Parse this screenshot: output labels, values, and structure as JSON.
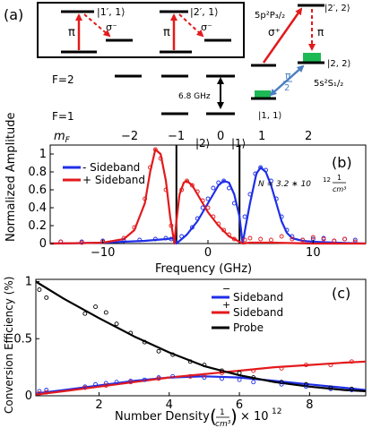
{
  "panel_a": {
    "label": "(a)",
    "box_left": {
      "upper_label": "|1′, 1⟩",
      "sigma_label": "σ⁻",
      "pi_label": "π"
    },
    "box_right": {
      "upper_label": "|2′, 1⟩",
      "sigma_label": "σ⁻",
      "pi_label": "π"
    },
    "f2_label": "F=2",
    "f1_label": "F=1",
    "mf_label": "m_F",
    "mf_values": [
      "−2",
      "−1",
      "0",
      "1",
      "2"
    ],
    "splitting_label": "6.8 GHz",
    "right_upper_label": "|2′, 2⟩",
    "right_upper_term": "5p²P₃/₂",
    "sigma_plus_label": "σ⁺",
    "pi_right_label": "π",
    "level_22_label": "|2, 2⟩",
    "level_11_label": "|1, 1⟩",
    "mw_pi_label": "π",
    "mw_half_label": "2",
    "ground_term": "5s²S₁/₂",
    "colors": {
      "red": "#e31a1c",
      "blue": "#4a7fc1",
      "green": "#1db954"
    }
  },
  "panel_b": {
    "label": "(b)",
    "marker_2": "|2⟩",
    "marker_1": "|1⟩",
    "ylabel": "Normalized Amplitude",
    "xlabel": "Frequency (GHz)",
    "legend": [
      "- Sideband",
      "+ Sideband"
    ],
    "density_note": {
      "prefix": "N = 3.2 ∗ 10",
      "exp": "12",
      "num": "1",
      "den": "cm³"
    }
  },
  "panel_c": {
    "label": "(c)",
    "ylabel": "Conversion Efficiency (%)",
    "xlabel_prefix": "Number Density",
    "xlabel_num": "1",
    "xlabel_den": "cm³",
    "xlabel_suffix": "× 10",
    "xlabel_exp": "12",
    "legend": [
      "Sideband",
      "Sideband",
      "Probe"
    ],
    "legend_signs": [
      "−",
      "+",
      ""
    ]
  },
  "chart_data": [
    {
      "type": "line",
      "xlim": [
        -15,
        15
      ],
      "ylim": [
        0,
        1.1
      ],
      "xticks": [
        -10,
        0,
        10
      ],
      "yticks": [
        0,
        0.2,
        0.4,
        0.6,
        0.8,
        1
      ],
      "vlines": [
        -3,
        3
      ],
      "colors": {
        "minus": "#1f2ee8",
        "plus": "#e31a1c"
      },
      "series": [
        {
          "name": "- Sideband",
          "fit_x": [
            -15,
            -12,
            -10,
            -8,
            -6,
            -5,
            -4,
            -3.2,
            -3,
            -2.5,
            -2,
            -1,
            0,
            1,
            1.5,
            2,
            2.5,
            3,
            3.3,
            3.6,
            4,
            4.6,
            5,
            5.5,
            6,
            6.5,
            7,
            7.5,
            8,
            9,
            10,
            12,
            15
          ],
          "fit_y": [
            0,
            0.005,
            0.01,
            0.02,
            0.03,
            0.04,
            0.05,
            0.06,
            0.0,
            0.05,
            0.1,
            0.25,
            0.45,
            0.65,
            0.7,
            0.68,
            0.55,
            0.3,
            0.0,
            0.2,
            0.45,
            0.78,
            0.85,
            0.8,
            0.65,
            0.45,
            0.25,
            0.12,
            0.06,
            0.03,
            0.02,
            0.01,
            0
          ],
          "points_x": [
            -14,
            -12,
            -10,
            -8,
            -6.5,
            -5,
            -4,
            -3.5,
            -2.5,
            -1.5,
            -1,
            -0.5,
            0,
            0.5,
            1,
            1.5,
            2,
            2.5,
            3.5,
            4,
            4.5,
            5,
            5.5,
            6,
            6.5,
            7,
            7.5,
            8,
            9,
            10,
            11,
            12,
            13,
            14
          ],
          "points_y": [
            0.02,
            0.02,
            0.03,
            0.03,
            0.04,
            0.05,
            0.06,
            0.05,
            0.08,
            0.18,
            0.28,
            0.4,
            0.5,
            0.62,
            0.68,
            0.7,
            0.62,
            0.45,
            0.3,
            0.55,
            0.78,
            0.85,
            0.82,
            0.7,
            0.5,
            0.3,
            0.15,
            0.08,
            0.04,
            0.05,
            0.06,
            0.03,
            0.05,
            0.04
          ]
        },
        {
          "name": "+ Sideband",
          "fit_x": [
            -15,
            -12,
            -10,
            -8,
            -7,
            -6,
            -5.5,
            -5,
            -4.5,
            -4,
            -3.6,
            -3.2,
            -3,
            -2.7,
            -2.3,
            -2,
            -1.5,
            -1,
            0,
            1,
            2,
            3,
            3.3,
            4,
            6,
            8,
            10,
            12,
            15
          ],
          "fit_y": [
            0,
            0.005,
            0.01,
            0.05,
            0.15,
            0.45,
            0.8,
            1.05,
            1.0,
            0.7,
            0.3,
            0.0,
            0.25,
            0.55,
            0.68,
            0.7,
            0.65,
            0.55,
            0.35,
            0.2,
            0.08,
            0.02,
            0.0,
            0.01,
            0.01,
            0.005,
            0,
            0,
            0
          ],
          "points_x": [
            -14,
            -12,
            -10,
            -8,
            -7,
            -6,
            -5.5,
            -5,
            -4.5,
            -4,
            -3.5,
            -2.5,
            -2,
            -1.5,
            -1,
            -0.5,
            0,
            0.5,
            1,
            1.5,
            2,
            2.5,
            3.5,
            4,
            5,
            6,
            7,
            8,
            9,
            10,
            11,
            12,
            13,
            14
          ],
          "points_y": [
            0.02,
            0.01,
            0.02,
            0.06,
            0.18,
            0.5,
            0.85,
            1.05,
            0.95,
            0.6,
            0.2,
            0.6,
            0.7,
            0.65,
            0.58,
            0.48,
            0.4,
            0.3,
            0.22,
            0.15,
            0.1,
            0.05,
            0.04,
            0.06,
            0.05,
            0.04,
            0.08,
            0.05,
            0.04,
            0.07,
            0.05,
            0.03,
            0.05,
            0.02
          ]
        }
      ]
    },
    {
      "type": "line",
      "xlim": [
        0.2,
        9.6
      ],
      "ylim": [
        0,
        1.02
      ],
      "xticks": [
        2,
        4,
        6,
        8
      ],
      "yticks": [
        0,
        0.5,
        1
      ],
      "colors": {
        "minus": "#1f2ee8",
        "plus": "#e31a1c",
        "probe": "#000000"
      },
      "series": [
        {
          "name": "Sideband",
          "sign": "−",
          "fit_x": [
            0.2,
            1,
            2,
            3,
            4,
            5,
            6,
            7,
            8,
            9,
            9.6
          ],
          "fit_y": [
            0.02,
            0.05,
            0.09,
            0.13,
            0.16,
            0.17,
            0.16,
            0.13,
            0.1,
            0.07,
            0.05
          ],
          "points_x": [
            0.3,
            0.5,
            1.6,
            1.9,
            2.2,
            2.5,
            2.9,
            3.3,
            3.7,
            4.1,
            4.6,
            5.0,
            5.5,
            6.0,
            6.4,
            7.2,
            7.9,
            8.6,
            9.2
          ],
          "points_y": [
            0.04,
            0.05,
            0.08,
            0.1,
            0.11,
            0.12,
            0.13,
            0.14,
            0.16,
            0.17,
            0.17,
            0.16,
            0.15,
            0.14,
            0.12,
            0.1,
            0.08,
            0.06,
            0.05
          ]
        },
        {
          "name": "Sideband",
          "sign": "+",
          "fit_x": [
            0.2,
            1,
            2,
            3,
            4,
            5,
            6,
            7,
            8,
            9,
            9.6
          ],
          "fit_y": [
            0.01,
            0.04,
            0.08,
            0.12,
            0.16,
            0.19,
            0.22,
            0.25,
            0.27,
            0.29,
            0.3
          ],
          "points_x": [
            0.3,
            0.5,
            1.6,
            2.2,
            2.9,
            3.7,
            4.6,
            5.0,
            5.5,
            6.4,
            7.2,
            7.9,
            8.6,
            9.2
          ],
          "points_y": [
            0.02,
            0.03,
            0.07,
            0.09,
            0.12,
            0.15,
            0.17,
            0.18,
            0.2,
            0.22,
            0.24,
            0.27,
            0.27,
            0.3
          ]
        },
        {
          "name": "Probe",
          "sign": "",
          "fit_x": [
            0.2,
            1,
            2,
            3,
            4,
            5,
            6,
            7,
            8,
            9,
            9.6
          ],
          "fit_y": [
            1.0,
            0.85,
            0.68,
            0.52,
            0.38,
            0.26,
            0.18,
            0.12,
            0.08,
            0.05,
            0.04
          ],
          "points_x": [
            0.3,
            0.5,
            1.6,
            1.9,
            2.2,
            2.5,
            2.9,
            3.3,
            3.7,
            4.1,
            4.6,
            5.0,
            5.5,
            6.0,
            6.4,
            7.2,
            7.9,
            8.6,
            9.2
          ],
          "points_y": [
            0.93,
            0.86,
            0.72,
            0.78,
            0.73,
            0.63,
            0.55,
            0.47,
            0.39,
            0.36,
            0.3,
            0.27,
            0.22,
            0.2,
            0.16,
            0.12,
            0.1,
            0.07,
            0.06
          ]
        }
      ]
    }
  ]
}
